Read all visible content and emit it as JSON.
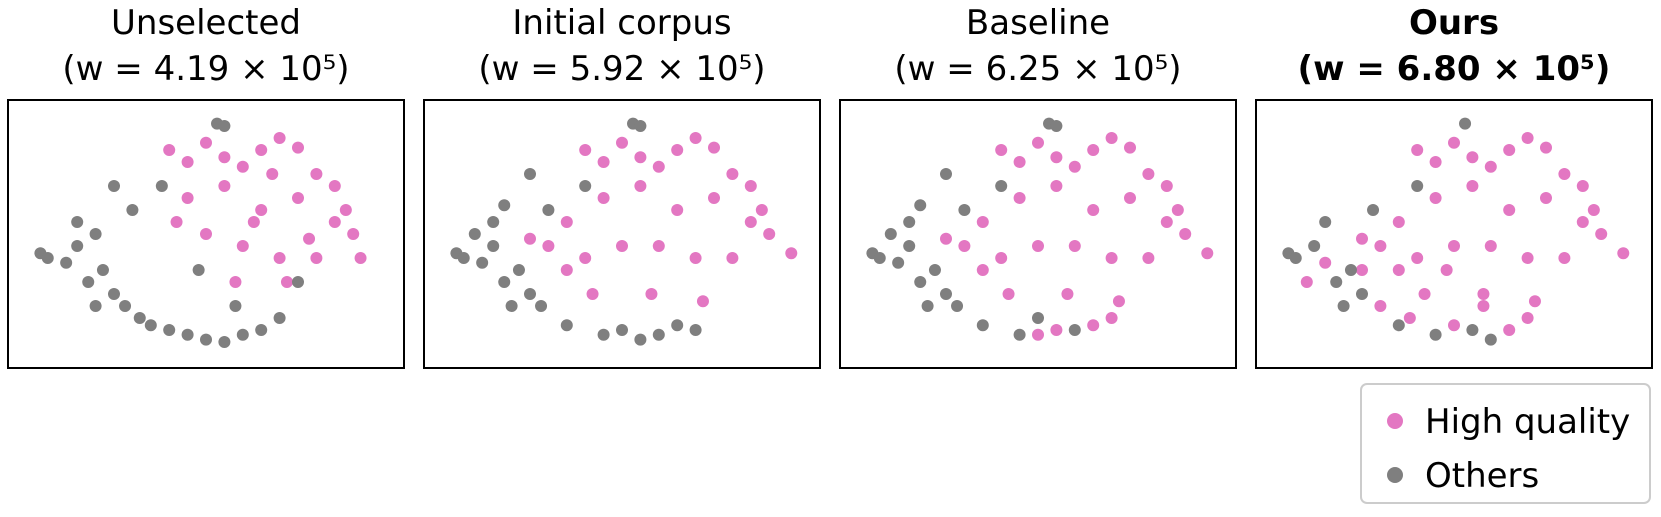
{
  "chart_data": [
    {
      "type": "scatter",
      "title": "Unselected",
      "subtitle": "(w = 4.19 × 10⁵)",
      "xlim": [
        0,
        100
      ],
      "ylim": [
        0,
        100
      ],
      "series": [
        {
          "name": "High quality",
          "color": "#e377c2",
          "x": [
            40,
            45,
            50,
            55,
            60,
            65,
            70,
            75,
            80,
            85,
            88,
            90,
            45,
            55,
            65,
            75,
            85,
            50,
            60,
            70,
            80,
            42,
            58,
            72,
            78,
            92,
            68,
            63
          ],
          "values": [
            85,
            80,
            88,
            82,
            78,
            85,
            90,
            86,
            75,
            70,
            60,
            50,
            65,
            70,
            60,
            65,
            55,
            50,
            45,
            40,
            40,
            55,
            30,
            30,
            48,
            40,
            75,
            55
          ]
        },
        {
          "name": "Others",
          "color": "#7f7f7f",
          "x": [
            5,
            7,
            12,
            15,
            18,
            22,
            25,
            20,
            28,
            32,
            35,
            40,
            45,
            50,
            55,
            60,
            65,
            70,
            30,
            38,
            48,
            58,
            25,
            15,
            53,
            55,
            75,
            20
          ],
          "values": [
            42,
            40,
            38,
            45,
            30,
            35,
            25,
            50,
            20,
            15,
            12,
            10,
            8,
            6,
            5,
            8,
            10,
            15,
            60,
            70,
            35,
            20,
            70,
            55,
            96,
            95,
            30,
            20
          ]
        }
      ]
    },
    {
      "type": "scatter",
      "title": "Initial corpus",
      "subtitle": "(w = 5.92 × 10⁵)",
      "xlim": [
        0,
        100
      ],
      "ylim": [
        0,
        100
      ],
      "series": [
        {
          "name": "High quality",
          "color": "#e377c2",
          "x": [
            30,
            40,
            45,
            50,
            55,
            60,
            65,
            70,
            75,
            80,
            85,
            88,
            90,
            35,
            45,
            55,
            65,
            75,
            85,
            40,
            50,
            60,
            70,
            80,
            42,
            58,
            72,
            96,
            25,
            35
          ],
          "values": [
            45,
            85,
            80,
            88,
            82,
            78,
            85,
            90,
            86,
            75,
            70,
            60,
            50,
            55,
            65,
            70,
            60,
            65,
            55,
            40,
            45,
            45,
            40,
            40,
            25,
            25,
            22,
            42,
            48,
            35
          ]
        },
        {
          "name": "Others",
          "color": "#7f7f7f",
          "x": [
            5,
            7,
            12,
            15,
            18,
            22,
            25,
            28,
            35,
            45,
            55,
            60,
            65,
            30,
            15,
            53,
            55,
            20,
            10,
            40,
            70,
            25,
            50,
            18
          ],
          "values": [
            42,
            40,
            38,
            45,
            30,
            35,
            25,
            20,
            12,
            8,
            6,
            8,
            12,
            60,
            55,
            96,
            95,
            20,
            50,
            70,
            10,
            75,
            10,
            62
          ]
        }
      ]
    },
    {
      "type": "scatter",
      "title": "Baseline",
      "subtitle": "(w = 6.25 × 10⁵)",
      "xlim": [
        0,
        100
      ],
      "ylim": [
        0,
        100
      ],
      "series": [
        {
          "name": "High quality",
          "color": "#e377c2",
          "x": [
            30,
            40,
            45,
            50,
            55,
            60,
            65,
            70,
            75,
            80,
            85,
            88,
            90,
            35,
            45,
            55,
            65,
            75,
            85,
            40,
            50,
            60,
            70,
            80,
            42,
            58,
            72,
            96,
            25,
            35,
            50,
            55,
            65,
            70
          ],
          "values": [
            45,
            85,
            80,
            88,
            82,
            78,
            85,
            90,
            86,
            75,
            70,
            60,
            50,
            55,
            65,
            70,
            60,
            65,
            55,
            40,
            45,
            45,
            40,
            40,
            25,
            25,
            22,
            42,
            48,
            35,
            8,
            10,
            12,
            15
          ]
        },
        {
          "name": "Others",
          "color": "#7f7f7f",
          "x": [
            5,
            7,
            12,
            15,
            18,
            22,
            25,
            28,
            35,
            45,
            30,
            15,
            53,
            55,
            20,
            10,
            40,
            25,
            60,
            18,
            50
          ],
          "values": [
            42,
            40,
            38,
            45,
            30,
            35,
            25,
            20,
            12,
            8,
            60,
            55,
            96,
            95,
            20,
            50,
            70,
            75,
            10,
            62,
            15
          ]
        }
      ]
    },
    {
      "type": "scatter",
      "title": "Ours",
      "subtitle": "(w = 6.80 × 10⁵)",
      "title_bold": true,
      "legend": "lower right",
      "xlim": [
        0,
        100
      ],
      "ylim": [
        0,
        100
      ],
      "series": [
        {
          "name": "High quality",
          "color": "#e377c2",
          "x": [
            30,
            40,
            45,
            50,
            55,
            60,
            65,
            70,
            75,
            80,
            85,
            88,
            90,
            35,
            45,
            55,
            65,
            75,
            85,
            40,
            50,
            60,
            70,
            80,
            42,
            58,
            72,
            96,
            25,
            35,
            50,
            65,
            70,
            15,
            30,
            38,
            48,
            58,
            10,
            25
          ],
          "values": [
            45,
            85,
            80,
            88,
            82,
            78,
            85,
            90,
            86,
            75,
            70,
            60,
            50,
            55,
            65,
            70,
            60,
            65,
            55,
            40,
            45,
            45,
            40,
            40,
            25,
            25,
            22,
            42,
            48,
            35,
            12,
            10,
            15,
            38,
            20,
            15,
            35,
            20,
            30,
            35
          ]
        },
        {
          "name": "Others",
          "color": "#7f7f7f",
          "x": [
            5,
            7,
            12,
            18,
            22,
            25,
            35,
            45,
            55,
            15,
            53,
            20,
            40,
            60,
            28
          ],
          "values": [
            42,
            40,
            45,
            30,
            35,
            25,
            12,
            8,
            10,
            55,
            96,
            20,
            70,
            6,
            60
          ]
        }
      ]
    }
  ]
}
